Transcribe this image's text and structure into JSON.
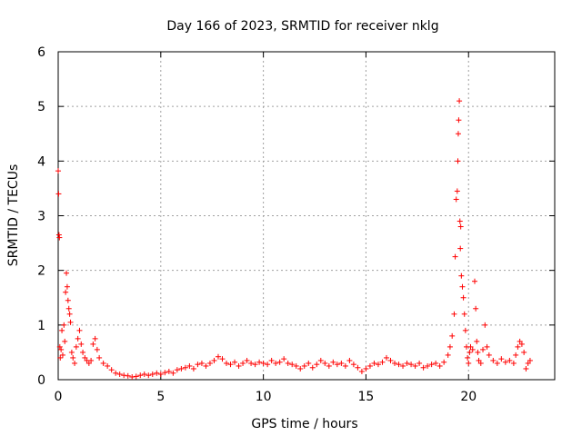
{
  "chart_data": {
    "type": "scatter",
    "title": "Day 166 of 2023, SRMTID for receiver nklg",
    "xlabel": "GPS time / hours",
    "ylabel": "SRMTID / TECUs",
    "xlim": [
      0,
      24.2
    ],
    "ylim": [
      0,
      6
    ],
    "xticks": [
      0,
      5,
      10,
      15,
      20
    ],
    "yticks": [
      0,
      1,
      2,
      3,
      4,
      5,
      6
    ],
    "grid": true,
    "marker": "+",
    "color": "#ff0000",
    "series": [
      {
        "name": "SRMTID",
        "points": [
          [
            0.0,
            3.82
          ],
          [
            0.02,
            3.4
          ],
          [
            0.04,
            2.65
          ],
          [
            0.06,
            2.6
          ],
          [
            0.08,
            0.6
          ],
          [
            0.1,
            0.4
          ],
          [
            0.14,
            0.55
          ],
          [
            0.18,
            0.9
          ],
          [
            0.22,
            0.45
          ],
          [
            0.28,
            1.0
          ],
          [
            0.32,
            0.7
          ],
          [
            0.36,
            1.6
          ],
          [
            0.4,
            1.95
          ],
          [
            0.44,
            1.7
          ],
          [
            0.48,
            1.45
          ],
          [
            0.52,
            1.3
          ],
          [
            0.56,
            1.2
          ],
          [
            0.6,
            1.05
          ],
          [
            0.66,
            0.5
          ],
          [
            0.72,
            0.4
          ],
          [
            0.8,
            0.3
          ],
          [
            0.88,
            0.6
          ],
          [
            0.96,
            0.75
          ],
          [
            1.04,
            0.9
          ],
          [
            1.12,
            0.65
          ],
          [
            1.2,
            0.5
          ],
          [
            1.3,
            0.4
          ],
          [
            1.4,
            0.35
          ],
          [
            1.5,
            0.3
          ],
          [
            1.6,
            0.35
          ],
          [
            1.7,
            0.65
          ],
          [
            1.8,
            0.75
          ],
          [
            1.9,
            0.55
          ],
          [
            2.0,
            0.4
          ],
          [
            2.2,
            0.3
          ],
          [
            2.4,
            0.25
          ],
          [
            2.6,
            0.18
          ],
          [
            2.8,
            0.12
          ],
          [
            3.0,
            0.1
          ],
          [
            3.2,
            0.08
          ],
          [
            3.4,
            0.07
          ],
          [
            3.6,
            0.05
          ],
          [
            3.8,
            0.06
          ],
          [
            4.0,
            0.08
          ],
          [
            4.2,
            0.1
          ],
          [
            4.4,
            0.08
          ],
          [
            4.6,
            0.1
          ],
          [
            4.8,
            0.12
          ],
          [
            5.0,
            0.1
          ],
          [
            5.2,
            0.13
          ],
          [
            5.4,
            0.15
          ],
          [
            5.6,
            0.12
          ],
          [
            5.8,
            0.18
          ],
          [
            6.0,
            0.2
          ],
          [
            6.2,
            0.22
          ],
          [
            6.4,
            0.25
          ],
          [
            6.6,
            0.2
          ],
          [
            6.8,
            0.28
          ],
          [
            7.0,
            0.3
          ],
          [
            7.2,
            0.25
          ],
          [
            7.4,
            0.3
          ],
          [
            7.6,
            0.35
          ],
          [
            7.8,
            0.42
          ],
          [
            8.0,
            0.38
          ],
          [
            8.2,
            0.3
          ],
          [
            8.4,
            0.28
          ],
          [
            8.6,
            0.32
          ],
          [
            8.8,
            0.25
          ],
          [
            9.0,
            0.3
          ],
          [
            9.2,
            0.35
          ],
          [
            9.4,
            0.3
          ],
          [
            9.6,
            0.28
          ],
          [
            9.8,
            0.32
          ],
          [
            10.0,
            0.3
          ],
          [
            10.2,
            0.28
          ],
          [
            10.4,
            0.35
          ],
          [
            10.6,
            0.3
          ],
          [
            10.8,
            0.32
          ],
          [
            11.0,
            0.38
          ],
          [
            11.2,
            0.3
          ],
          [
            11.4,
            0.28
          ],
          [
            11.6,
            0.25
          ],
          [
            11.8,
            0.2
          ],
          [
            12.0,
            0.25
          ],
          [
            12.2,
            0.3
          ],
          [
            12.4,
            0.22
          ],
          [
            12.6,
            0.28
          ],
          [
            12.8,
            0.35
          ],
          [
            13.0,
            0.3
          ],
          [
            13.2,
            0.25
          ],
          [
            13.4,
            0.32
          ],
          [
            13.6,
            0.28
          ],
          [
            13.8,
            0.3
          ],
          [
            14.0,
            0.25
          ],
          [
            14.2,
            0.35
          ],
          [
            14.4,
            0.28
          ],
          [
            14.6,
            0.22
          ],
          [
            14.8,
            0.15
          ],
          [
            15.0,
            0.2
          ],
          [
            15.2,
            0.25
          ],
          [
            15.4,
            0.3
          ],
          [
            15.6,
            0.28
          ],
          [
            15.8,
            0.32
          ],
          [
            16.0,
            0.4
          ],
          [
            16.2,
            0.35
          ],
          [
            16.4,
            0.3
          ],
          [
            16.6,
            0.28
          ],
          [
            16.8,
            0.25
          ],
          [
            17.0,
            0.3
          ],
          [
            17.2,
            0.28
          ],
          [
            17.4,
            0.25
          ],
          [
            17.6,
            0.3
          ],
          [
            17.8,
            0.22
          ],
          [
            18.0,
            0.25
          ],
          [
            18.2,
            0.28
          ],
          [
            18.4,
            0.3
          ],
          [
            18.6,
            0.25
          ],
          [
            18.8,
            0.32
          ],
          [
            19.0,
            0.45
          ],
          [
            19.1,
            0.6
          ],
          [
            19.2,
            0.8
          ],
          [
            19.3,
            1.2
          ],
          [
            19.35,
            2.25
          ],
          [
            19.4,
            3.3
          ],
          [
            19.45,
            3.45
          ],
          [
            19.48,
            4.0
          ],
          [
            19.5,
            4.5
          ],
          [
            19.52,
            4.75
          ],
          [
            19.55,
            5.1
          ],
          [
            19.58,
            2.9
          ],
          [
            19.6,
            2.4
          ],
          [
            19.62,
            2.8
          ],
          [
            19.65,
            1.9
          ],
          [
            19.7,
            1.7
          ],
          [
            19.75,
            1.5
          ],
          [
            19.8,
            1.2
          ],
          [
            19.85,
            0.9
          ],
          [
            19.9,
            0.6
          ],
          [
            19.95,
            0.4
          ],
          [
            20.0,
            0.3
          ],
          [
            20.05,
            0.5
          ],
          [
            20.1,
            0.6
          ],
          [
            20.2,
            0.55
          ],
          [
            20.3,
            1.8
          ],
          [
            20.35,
            1.3
          ],
          [
            20.4,
            0.7
          ],
          [
            20.45,
            0.5
          ],
          [
            20.5,
            0.35
          ],
          [
            20.6,
            0.3
          ],
          [
            20.7,
            0.55
          ],
          [
            20.8,
            1.0
          ],
          [
            20.9,
            0.6
          ],
          [
            21.0,
            0.45
          ],
          [
            21.2,
            0.35
          ],
          [
            21.4,
            0.3
          ],
          [
            21.6,
            0.38
          ],
          [
            21.8,
            0.32
          ],
          [
            22.0,
            0.35
          ],
          [
            22.2,
            0.3
          ],
          [
            22.3,
            0.45
          ],
          [
            22.4,
            0.6
          ],
          [
            22.5,
            0.7
          ],
          [
            22.6,
            0.65
          ],
          [
            22.7,
            0.5
          ],
          [
            22.8,
            0.2
          ],
          [
            22.9,
            0.3
          ],
          [
            23.0,
            0.35
          ]
        ]
      }
    ]
  }
}
